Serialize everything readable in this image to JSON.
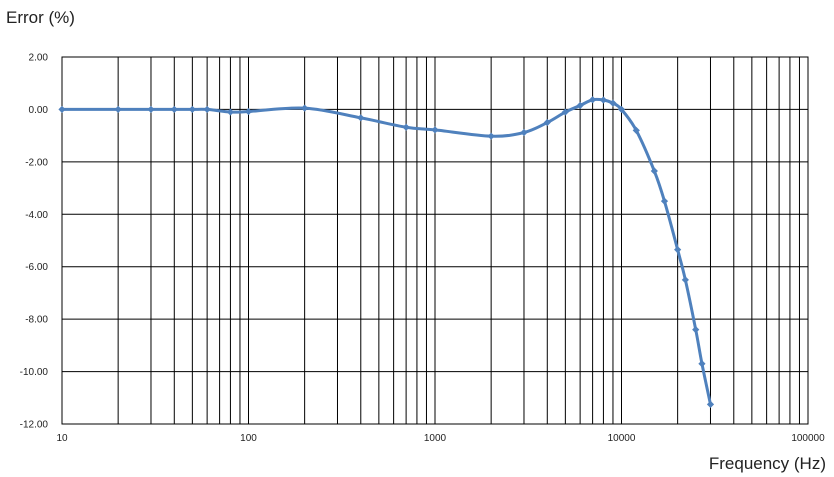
{
  "chart_data": {
    "type": "line",
    "title": "",
    "xlabel": "Frequency (Hz)",
    "ylabel": "Error (%)",
    "x_scale": "log",
    "xlim": [
      10,
      100000
    ],
    "ylim": [
      -12,
      2
    ],
    "x_ticks": [
      10,
      100,
      1000,
      10000,
      100000
    ],
    "x_tick_labels": [
      "10",
      "100",
      "1000",
      "10000",
      "100000"
    ],
    "y_ticks": [
      2,
      0,
      -2,
      -4,
      -6,
      -8,
      -10,
      -12
    ],
    "y_tick_labels": [
      "2.00",
      "0.00",
      "-2.00",
      "-4.00",
      "-6.00",
      "-8.00",
      "-10.00",
      "-12.00"
    ],
    "grid": true,
    "series_color": "#4f81bd",
    "series": [
      {
        "x": [
          10,
          20,
          30,
          40,
          50,
          60,
          80,
          100,
          200,
          400,
          700,
          1000,
          2000,
          3000,
          4000,
          5000,
          6000,
          7000,
          8000,
          9000,
          10000,
          12000,
          15000,
          17000,
          20000,
          22000,
          25000,
          27000,
          30000
        ],
        "y": [
          0.0,
          0.0,
          0.0,
          0.0,
          0.0,
          0.0,
          -0.1,
          -0.08,
          0.05,
          -0.32,
          -0.68,
          -0.78,
          -1.02,
          -0.88,
          -0.5,
          -0.1,
          0.15,
          0.37,
          0.36,
          0.24,
          0.0,
          -0.8,
          -2.35,
          -3.5,
          -5.35,
          -6.5,
          -8.4,
          -9.7,
          -11.25
        ]
      }
    ]
  }
}
